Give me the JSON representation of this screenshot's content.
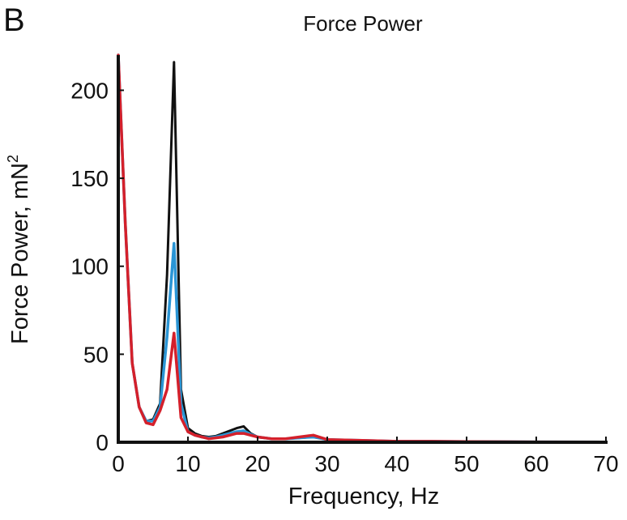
{
  "panel_label": "B",
  "chart_data": {
    "type": "line",
    "title": "Force Power",
    "xlabel": "Frequency, Hz",
    "ylabel": "Force Power, mN",
    "ylabel_superscript": "2",
    "xlim": [
      0,
      70
    ],
    "ylim": [
      0,
      220
    ],
    "xticks": [
      0,
      10,
      20,
      30,
      40,
      50,
      60,
      70
    ],
    "yticks": [
      0,
      50,
      100,
      150,
      200
    ],
    "grid": false,
    "series": [
      {
        "color": "#111111",
        "x": [
          0,
          1,
          2,
          3,
          4,
          5,
          6,
          7,
          8,
          9,
          10,
          11,
          12,
          13,
          14,
          15,
          16,
          17,
          18,
          19,
          20,
          22,
          24,
          26,
          28,
          30,
          35,
          40,
          45,
          50,
          60,
          70
        ],
        "y": [
          220,
          125,
          45,
          20,
          12,
          13,
          22,
          95,
          216,
          30,
          8,
          5,
          3.5,
          3,
          3.5,
          5,
          6.5,
          8,
          9,
          5,
          3,
          2,
          2,
          2.5,
          3,
          1.5,
          1,
          0.5,
          0.5,
          0.3,
          0.2,
          0.1
        ]
      },
      {
        "color": "#2a95d5",
        "x": [
          0,
          1,
          2,
          3,
          4,
          5,
          6,
          7,
          8,
          9,
          10,
          11,
          12,
          13,
          14,
          15,
          16,
          17,
          18,
          19,
          20,
          22,
          24,
          26,
          28,
          30,
          35,
          40,
          45,
          50,
          60,
          70
        ],
        "y": [
          220,
          125,
          45,
          20,
          12,
          12,
          20,
          60,
          113,
          22,
          6,
          4,
          3,
          2.5,
          3,
          4,
          5,
          6,
          6.5,
          4.5,
          3,
          2,
          2,
          2.5,
          3,
          1.5,
          1,
          0.5,
          0.5,
          0.3,
          0.2,
          0.1
        ]
      },
      {
        "color": "#d4202b",
        "x": [
          0,
          1,
          2,
          3,
          4,
          5,
          6,
          7,
          8,
          9,
          10,
          11,
          12,
          13,
          14,
          15,
          16,
          17,
          18,
          19,
          20,
          22,
          24,
          26,
          28,
          30,
          35,
          40,
          45,
          50,
          60,
          70
        ],
        "y": [
          220,
          125,
          45,
          20,
          11,
          10,
          18,
          30,
          62,
          14,
          6,
          4,
          3,
          2,
          2.5,
          3,
          4,
          5,
          5,
          4,
          3,
          2,
          2,
          3,
          4,
          1.5,
          1,
          0.5,
          0.5,
          0.3,
          0.2,
          0.1
        ]
      }
    ]
  }
}
